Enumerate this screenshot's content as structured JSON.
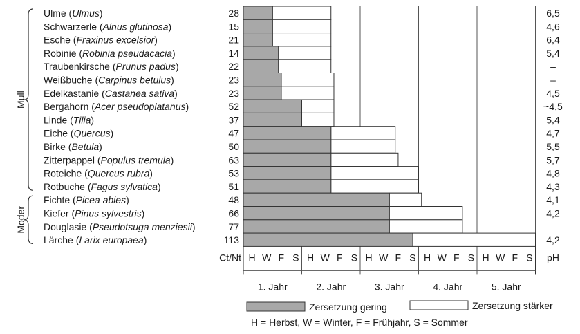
{
  "chart_data": {
    "type": "bar",
    "title": "",
    "xlabel": "",
    "ylabel": "",
    "column_headers": {
      "ct_nt": "Ct/Nt",
      "ph": "pH"
    },
    "years": [
      "1. Jahr",
      "2. Jahr",
      "3. Jahr",
      "4. Jahr",
      "5. Jahr"
    ],
    "seasons": [
      "H",
      "W",
      "F",
      "S"
    ],
    "groups": [
      {
        "label": "Mull",
        "from": 0,
        "to": 13
      },
      {
        "label": "Moder",
        "from": 14,
        "to": 17
      }
    ],
    "series": [
      {
        "name": "Zersetzung gering",
        "color": "#a8a8a8"
      },
      {
        "name": "Zersetzung stärker",
        "color": "#ffffff"
      }
    ],
    "rows": [
      {
        "common": "Ulme",
        "latin": "Ulmus",
        "ctnt": "28",
        "ph": "6,5",
        "gering": 0.5,
        "staerker": 1.5
      },
      {
        "common": "Schwarzerle",
        "latin": "Alnus glutinosa",
        "ctnt": "15",
        "ph": "4,6",
        "gering": 0.5,
        "staerker": 1.5
      },
      {
        "common": "Esche",
        "latin": "Fraxinus excelsior",
        "ctnt": "21",
        "ph": "6,4",
        "gering": 0.5,
        "staerker": 1.5
      },
      {
        "common": "Robinie",
        "latin": "Robinia pseudacacia",
        "ctnt": "14",
        "ph": "5,4",
        "gering": 0.6,
        "staerker": 1.5
      },
      {
        "common": "Traubenkirsche",
        "latin": "Prunus padus",
        "ctnt": "22",
        "ph": "–",
        "gering": 0.6,
        "staerker": 1.5
      },
      {
        "common": "Weißbuche",
        "latin": "Carpinus betulus",
        "ctnt": "23",
        "ph": "–",
        "gering": 0.65,
        "staerker": 1.55
      },
      {
        "common": "Edelkastanie",
        "latin": "Castanea sativa",
        "ctnt": "23",
        "ph": "4,5",
        "gering": 0.65,
        "staerker": 1.55
      },
      {
        "common": "Bergahorn",
        "latin": "Acer pseudoplatanus",
        "ctnt": "52",
        "ph": "~4,5",
        "gering": 1.0,
        "staerker": 1.55
      },
      {
        "common": "Linde",
        "latin": "Tilia",
        "ctnt": "37",
        "ph": "5,4",
        "gering": 1.0,
        "staerker": 1.55
      },
      {
        "common": "Eiche",
        "latin": "Quercus",
        "ctnt": "47",
        "ph": "4,7",
        "gering": 1.5,
        "staerker": 2.6
      },
      {
        "common": "Birke",
        "latin": "Betula",
        "ctnt": "50",
        "ph": "5,5",
        "gering": 1.5,
        "staerker": 2.6
      },
      {
        "common": "Zitterpappel",
        "latin": "Populus tremula",
        "ctnt": "63",
        "ph": "5,7",
        "gering": 1.5,
        "staerker": 2.65
      },
      {
        "common": "Roteiche",
        "latin": "Quercus rubra",
        "ctnt": "53",
        "ph": "4,8",
        "gering": 1.5,
        "staerker": 3.0
      },
      {
        "common": "Rotbuche",
        "latin": "Fagus sylvatica",
        "ctnt": "51",
        "ph": "4,3",
        "gering": 1.5,
        "staerker": 3.0
      },
      {
        "common": "Fichte",
        "latin": "Picea abies",
        "ctnt": "48",
        "ph": "4,1",
        "gering": 2.5,
        "staerker": 3.05
      },
      {
        "common": "Kiefer",
        "latin": "Pinus sylvestris",
        "ctnt": "66",
        "ph": "4,2",
        "gering": 2.5,
        "staerker": 3.75
      },
      {
        "common": "Douglasie",
        "latin": "Pseudotsuga menziesii",
        "ctnt": "77",
        "ph": "–",
        "gering": 2.5,
        "staerker": 3.75
      },
      {
        "common": "Lärche",
        "latin": "Larix europaea",
        "ctnt": "113",
        "ph": "4,2",
        "gering": 2.9,
        "staerker": 5.0
      }
    ],
    "legend_note": "H = Herbst,  W = Winter,  F = Frühjahr,  S = Sommer"
  }
}
